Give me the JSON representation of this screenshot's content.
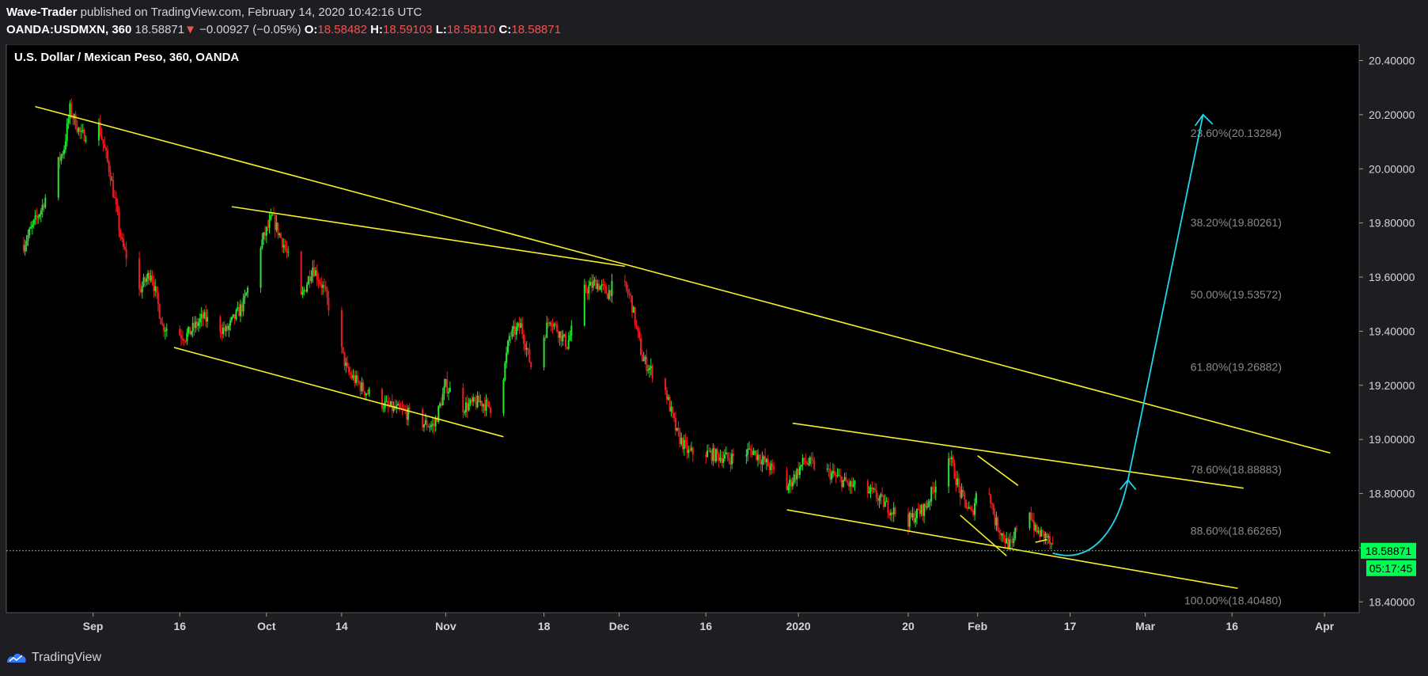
{
  "header": {
    "author": "Wave-Trader",
    "published": "published on TradingView.com, February 14, 2020 10:42:16 UTC",
    "symbol": "OANDA:USDMXN, 360",
    "last": "18.58871",
    "change": "−0.00927 (−0.05%)",
    "o_label": "O:",
    "o": "18.58482",
    "h_label": "H:",
    "h": "18.59103",
    "l_label": "L:",
    "l": "18.58110",
    "c_label": "C:",
    "c": "18.58871"
  },
  "chart_title": "U.S. Dollar / Mexican Peso, 360, OANDA",
  "footer": {
    "brand": "TradingView"
  },
  "colors": {
    "bg": "#000000",
    "up": "#27e62f",
    "down": "#ef1c1c",
    "trend": "#f5f02a",
    "arrow": "#1fd6ef",
    "fib": "#8a8a8a",
    "price_tag": "#00ff55"
  },
  "chart_data": {
    "type": "candlestick",
    "interval": "360",
    "ylim": [
      18.36,
      20.46
    ],
    "y_ticks": [
      "20.40000",
      "20.20000",
      "20.00000",
      "19.80000",
      "19.60000",
      "19.40000",
      "19.20000",
      "19.00000",
      "18.80000",
      "18.60000",
      "18.40000"
    ],
    "x_ticks": [
      {
        "date": "2019-09-01",
        "label": "Sep"
      },
      {
        "date": "2019-09-16",
        "label": "16"
      },
      {
        "date": "2019-10-01",
        "label": "Oct"
      },
      {
        "date": "2019-10-14",
        "label": "14"
      },
      {
        "date": "2019-11-01",
        "label": "Nov"
      },
      {
        "date": "2019-11-18",
        "label": "18"
      },
      {
        "date": "2019-12-01",
        "label": "Dec"
      },
      {
        "date": "2019-12-16",
        "label": "16"
      },
      {
        "date": "2020-01-01",
        "label": "2020"
      },
      {
        "date": "2020-01-20",
        "label": "20"
      },
      {
        "date": "2020-02-01",
        "label": "Feb"
      },
      {
        "date": "2020-02-17",
        "label": "17"
      },
      {
        "date": "2020-03-01",
        "label": "Mar"
      },
      {
        "date": "2020-03-16",
        "label": "16"
      },
      {
        "date": "2020-04-01",
        "label": "Apr"
      }
    ],
    "price_path": [
      [
        "2019-08-20",
        19.72
      ],
      [
        "2019-08-23",
        19.85
      ],
      [
        "2019-08-27",
        20.08
      ],
      [
        "2019-08-28",
        20.22
      ],
      [
        "2019-08-30",
        20.12
      ],
      [
        "2019-09-02",
        20.16
      ],
      [
        "2019-09-04",
        19.98
      ],
      [
        "2019-09-06",
        19.72
      ],
      [
        "2019-09-09",
        19.55
      ],
      [
        "2019-09-11",
        19.62
      ],
      [
        "2019-09-13",
        19.42
      ],
      [
        "2019-09-17",
        19.38
      ],
      [
        "2019-09-20",
        19.45
      ],
      [
        "2019-09-24",
        19.4
      ],
      [
        "2019-09-27",
        19.5
      ],
      [
        "2019-09-30",
        19.72
      ],
      [
        "2019-10-02",
        19.82
      ],
      [
        "2019-10-04",
        19.72
      ],
      [
        "2019-10-07",
        19.52
      ],
      [
        "2019-10-09",
        19.64
      ],
      [
        "2019-10-11",
        19.55
      ],
      [
        "2019-10-15",
        19.25
      ],
      [
        "2019-10-18",
        19.18
      ],
      [
        "2019-10-22",
        19.12
      ],
      [
        "2019-10-25",
        19.1
      ],
      [
        "2019-10-28",
        19.06
      ],
      [
        "2019-10-30",
        19.05
      ],
      [
        "2019-11-01",
        19.2
      ],
      [
        "2019-11-04",
        19.12
      ],
      [
        "2019-11-07",
        19.14
      ],
      [
        "2019-11-10",
        19.1
      ],
      [
        "2019-11-12",
        19.38
      ],
      [
        "2019-11-14",
        19.42
      ],
      [
        "2019-11-16",
        19.25
      ],
      [
        "2019-11-19",
        19.45
      ],
      [
        "2019-11-22",
        19.35
      ],
      [
        "2019-11-25",
        19.55
      ],
      [
        "2019-11-27",
        19.58
      ],
      [
        "2019-11-29",
        19.54
      ],
      [
        "2019-12-01",
        19.6
      ],
      [
        "2019-12-03",
        19.52
      ],
      [
        "2019-12-05",
        19.3
      ],
      [
        "2019-12-09",
        19.18
      ],
      [
        "2019-12-11",
        19.02
      ],
      [
        "2019-12-13",
        18.95
      ],
      [
        "2019-12-16",
        18.95
      ],
      [
        "2019-12-20",
        18.93
      ],
      [
        "2019-12-24",
        18.96
      ],
      [
        "2019-12-27",
        18.9
      ],
      [
        "2019-12-30",
        18.82
      ],
      [
        "2020-01-02",
        18.92
      ],
      [
        "2020-01-06",
        18.88
      ],
      [
        "2020-01-10",
        18.83
      ],
      [
        "2020-01-14",
        18.8
      ],
      [
        "2020-01-17",
        18.74
      ],
      [
        "2020-01-20",
        18.7
      ],
      [
        "2020-01-23",
        18.75
      ],
      [
        "2020-01-27",
        18.95
      ],
      [
        "2020-01-29",
        18.8
      ],
      [
        "2020-01-31",
        18.72
      ],
      [
        "2020-02-02",
        18.92
      ],
      [
        "2020-02-04",
        18.7
      ],
      [
        "2020-02-06",
        18.62
      ],
      [
        "2020-02-07",
        18.6
      ],
      [
        "2020-02-09",
        18.82
      ],
      [
        "2020-02-11",
        18.66
      ],
      [
        "2020-02-13",
        18.64
      ],
      [
        "2020-02-14",
        18.59
      ]
    ],
    "last_price": "18.58871",
    "countdown": "05:17:45",
    "fib_levels": [
      {
        "label": "23.60%(20.13284)",
        "value": 20.13284
      },
      {
        "label": "38.20%(19.80261)",
        "value": 19.80261
      },
      {
        "label": "50.00%(19.53572)",
        "value": 19.53572
      },
      {
        "label": "61.80%(19.26882)",
        "value": 19.26882
      },
      {
        "label": "78.60%(18.88883)",
        "value": 18.88883
      },
      {
        "label": "88.60%(18.66265)",
        "value": 18.66265
      },
      {
        "label": "100.00%(18.40480)",
        "value": 18.4048
      }
    ],
    "trend_lines": [
      [
        [
          "2019-08-22",
          20.23
        ],
        [
          "2020-04-02",
          18.95
        ]
      ],
      [
        [
          "2019-09-25",
          19.86
        ],
        [
          "2019-12-02",
          19.64
        ]
      ],
      [
        [
          "2019-09-15",
          19.34
        ],
        [
          "2019-11-11",
          19.01
        ]
      ],
      [
        [
          "2019-12-31",
          19.06
        ],
        [
          "2020-03-18",
          18.82
        ]
      ],
      [
        [
          "2019-12-30",
          18.74
        ],
        [
          "2020-03-17",
          18.45
        ]
      ],
      [
        [
          "2020-02-01",
          18.94
        ],
        [
          "2020-02-08",
          18.83
        ]
      ],
      [
        [
          "2020-01-29",
          18.72
        ],
        [
          "2020-02-06",
          18.57
        ]
      ],
      [
        [
          "2020-02-11",
          18.62
        ],
        [
          "2020-02-13",
          18.63
        ]
      ]
    ],
    "projection_arrow": [
      [
        "2020-02-14",
        18.58
      ],
      [
        "2020-02-20",
        18.54
      ],
      [
        "2020-02-25",
        18.64
      ],
      [
        "2020-02-27",
        18.85
      ],
      [
        "2020-03-11",
        20.2
      ]
    ]
  }
}
